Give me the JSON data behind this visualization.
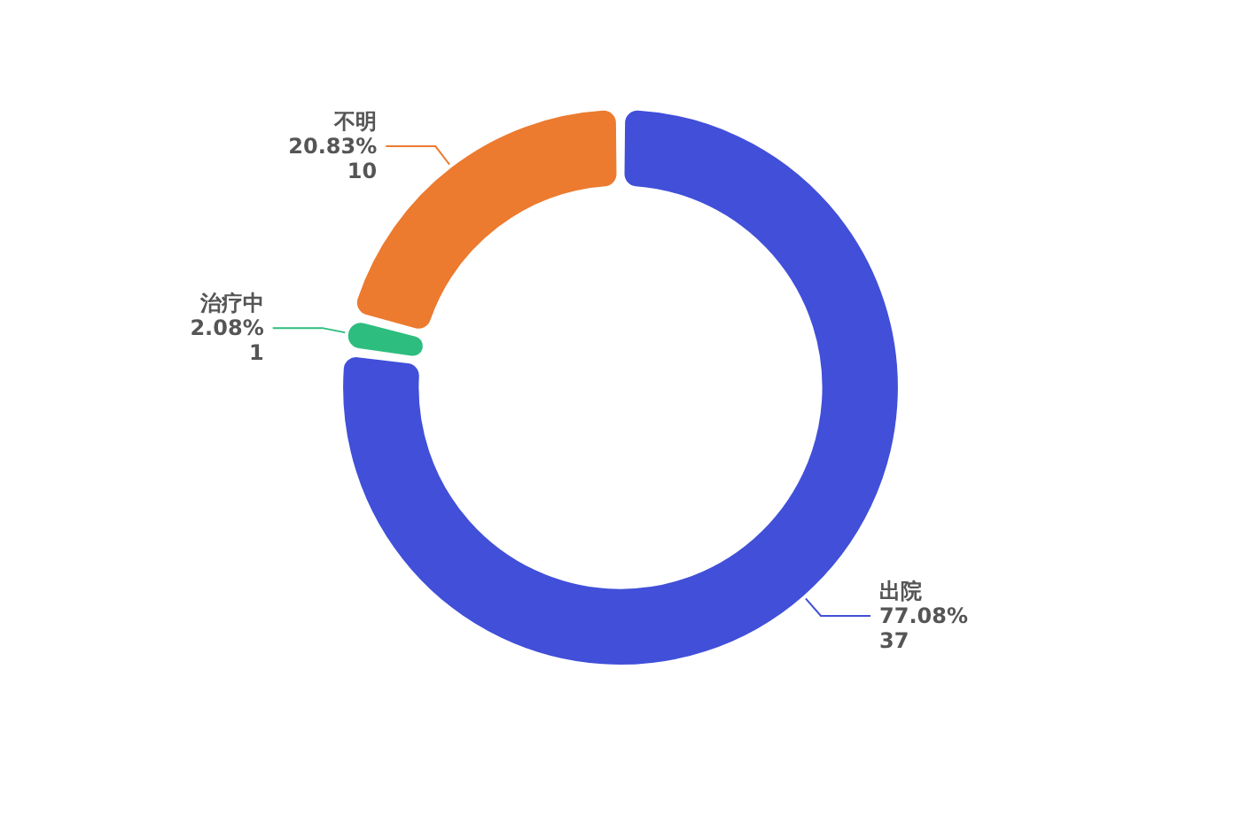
{
  "chart_data": {
    "type": "donut",
    "categories": [
      "出院",
      "治疗中",
      "不明"
    ],
    "values": [
      77.08,
      2.08,
      20.83
    ],
    "colors": [
      "#414fd9",
      "#2dbd7e",
      "#ec7a2f"
    ],
    "value_labels": [
      "77.08%\n37",
      "2.08%\n1",
      "20.83%\n10"
    ],
    "legend": false
  }
}
